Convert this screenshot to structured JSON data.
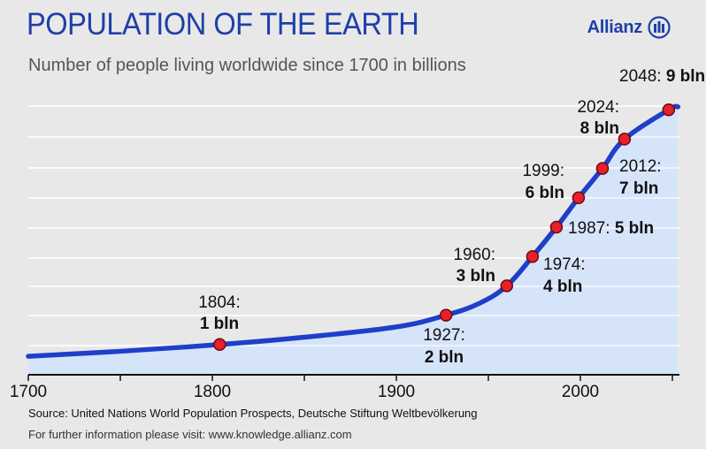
{
  "header": {
    "title": "POPULATION OF THE EARTH",
    "subtitle": "Number of people living worldwide since 1700 in billions",
    "logo_text": "Allianz"
  },
  "footer": {
    "source": "Source: United Nations World Population Prospects, Deutsche Stiftung Weltbevölkerung",
    "further": "For further information please visit:  www.knowledge.allianz.com"
  },
  "colors": {
    "title": "#1f3fa8",
    "line": "#1e3fc9",
    "area": "#d6e4fa",
    "marker": "#e8202a"
  },
  "chart_data": {
    "type": "line",
    "title": "POPULATION OF THE EARTH",
    "subtitle": "Number of people living worldwide since 1700 in billions",
    "xlim": [
      1700,
      2053
    ],
    "ylim": [
      0,
      9.6
    ],
    "x_ticks": [
      "1700",
      "1800",
      "1900",
      "2000"
    ],
    "grid": true,
    "area_fill": true,
    "series": [
      {
        "x": [
          1700,
          1750,
          1804,
          1850,
          1900,
          1927,
          1945,
          1960,
          1974,
          1987,
          1999,
          2012,
          2024,
          2048,
          2053
        ],
        "y": [
          0.6,
          0.77,
          1.0,
          1.25,
          1.6,
          2.0,
          2.4,
          3.0,
          4.0,
          5.0,
          6.0,
          7.0,
          8.0,
          9.0,
          9.1
        ]
      }
    ],
    "annotations": [
      {
        "year": 1804,
        "value": 1,
        "year_label": "1804:",
        "value_label": "1 bln"
      },
      {
        "year": 1927,
        "value": 2,
        "year_label": "1927:",
        "value_label": "2 bln"
      },
      {
        "year": 1960,
        "value": 3,
        "year_label": "1960:",
        "value_label": "3 bln"
      },
      {
        "year": 1974,
        "value": 4,
        "year_label": "1974:",
        "value_label": "4 bln"
      },
      {
        "year": 1987,
        "value": 5,
        "year_label": "1987:",
        "value_label": "5 bln"
      },
      {
        "year": 1999,
        "value": 6,
        "year_label": "1999:",
        "value_label": "6 bln"
      },
      {
        "year": 2012,
        "value": 7,
        "year_label": "2012:",
        "value_label": "7 bln"
      },
      {
        "year": 2024,
        "value": 8,
        "year_label": "2024:",
        "value_label": "8 bln"
      },
      {
        "year": 2048,
        "value": 9,
        "year_label": "2048:",
        "value_label": "9 bln"
      }
    ]
  }
}
